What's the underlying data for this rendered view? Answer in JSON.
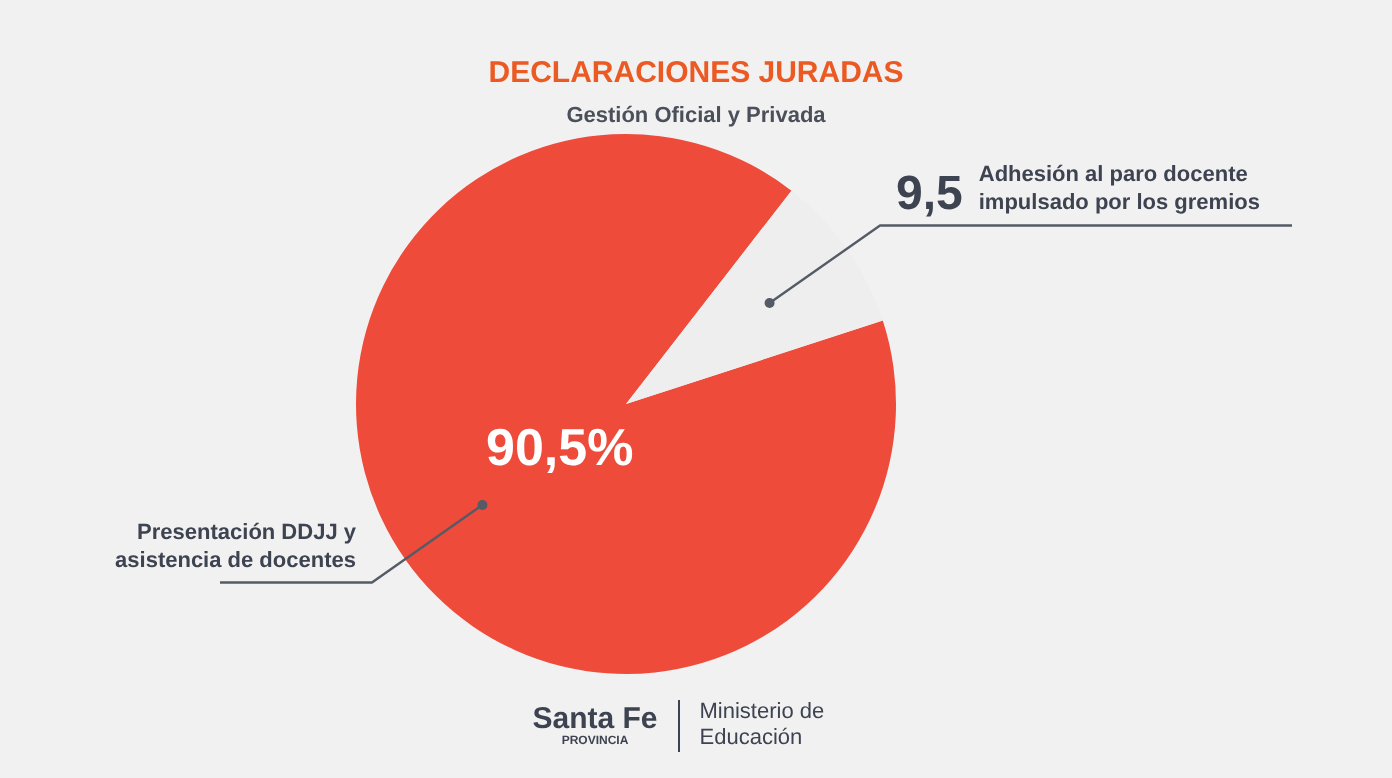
{
  "chart_data": {
    "type": "pie",
    "title": "DECLARACIONES JURADAS",
    "subtitle": "Gestión Oficial y Privada",
    "categories": [
      "Presentación DDJJ y asistencia de docentes",
      "Adhesión al paro docente impulsado por los gremios"
    ],
    "values": [
      90.5,
      9.5
    ],
    "colors": [
      "#ee4b3a",
      "#eeeeee"
    ],
    "value_labels": [
      "90,5%",
      "9,5"
    ],
    "annotations": [
      "Santa Fe",
      "PROVINCIA",
      "Ministerio de Educación"
    ],
    "legend": false
  }
}
